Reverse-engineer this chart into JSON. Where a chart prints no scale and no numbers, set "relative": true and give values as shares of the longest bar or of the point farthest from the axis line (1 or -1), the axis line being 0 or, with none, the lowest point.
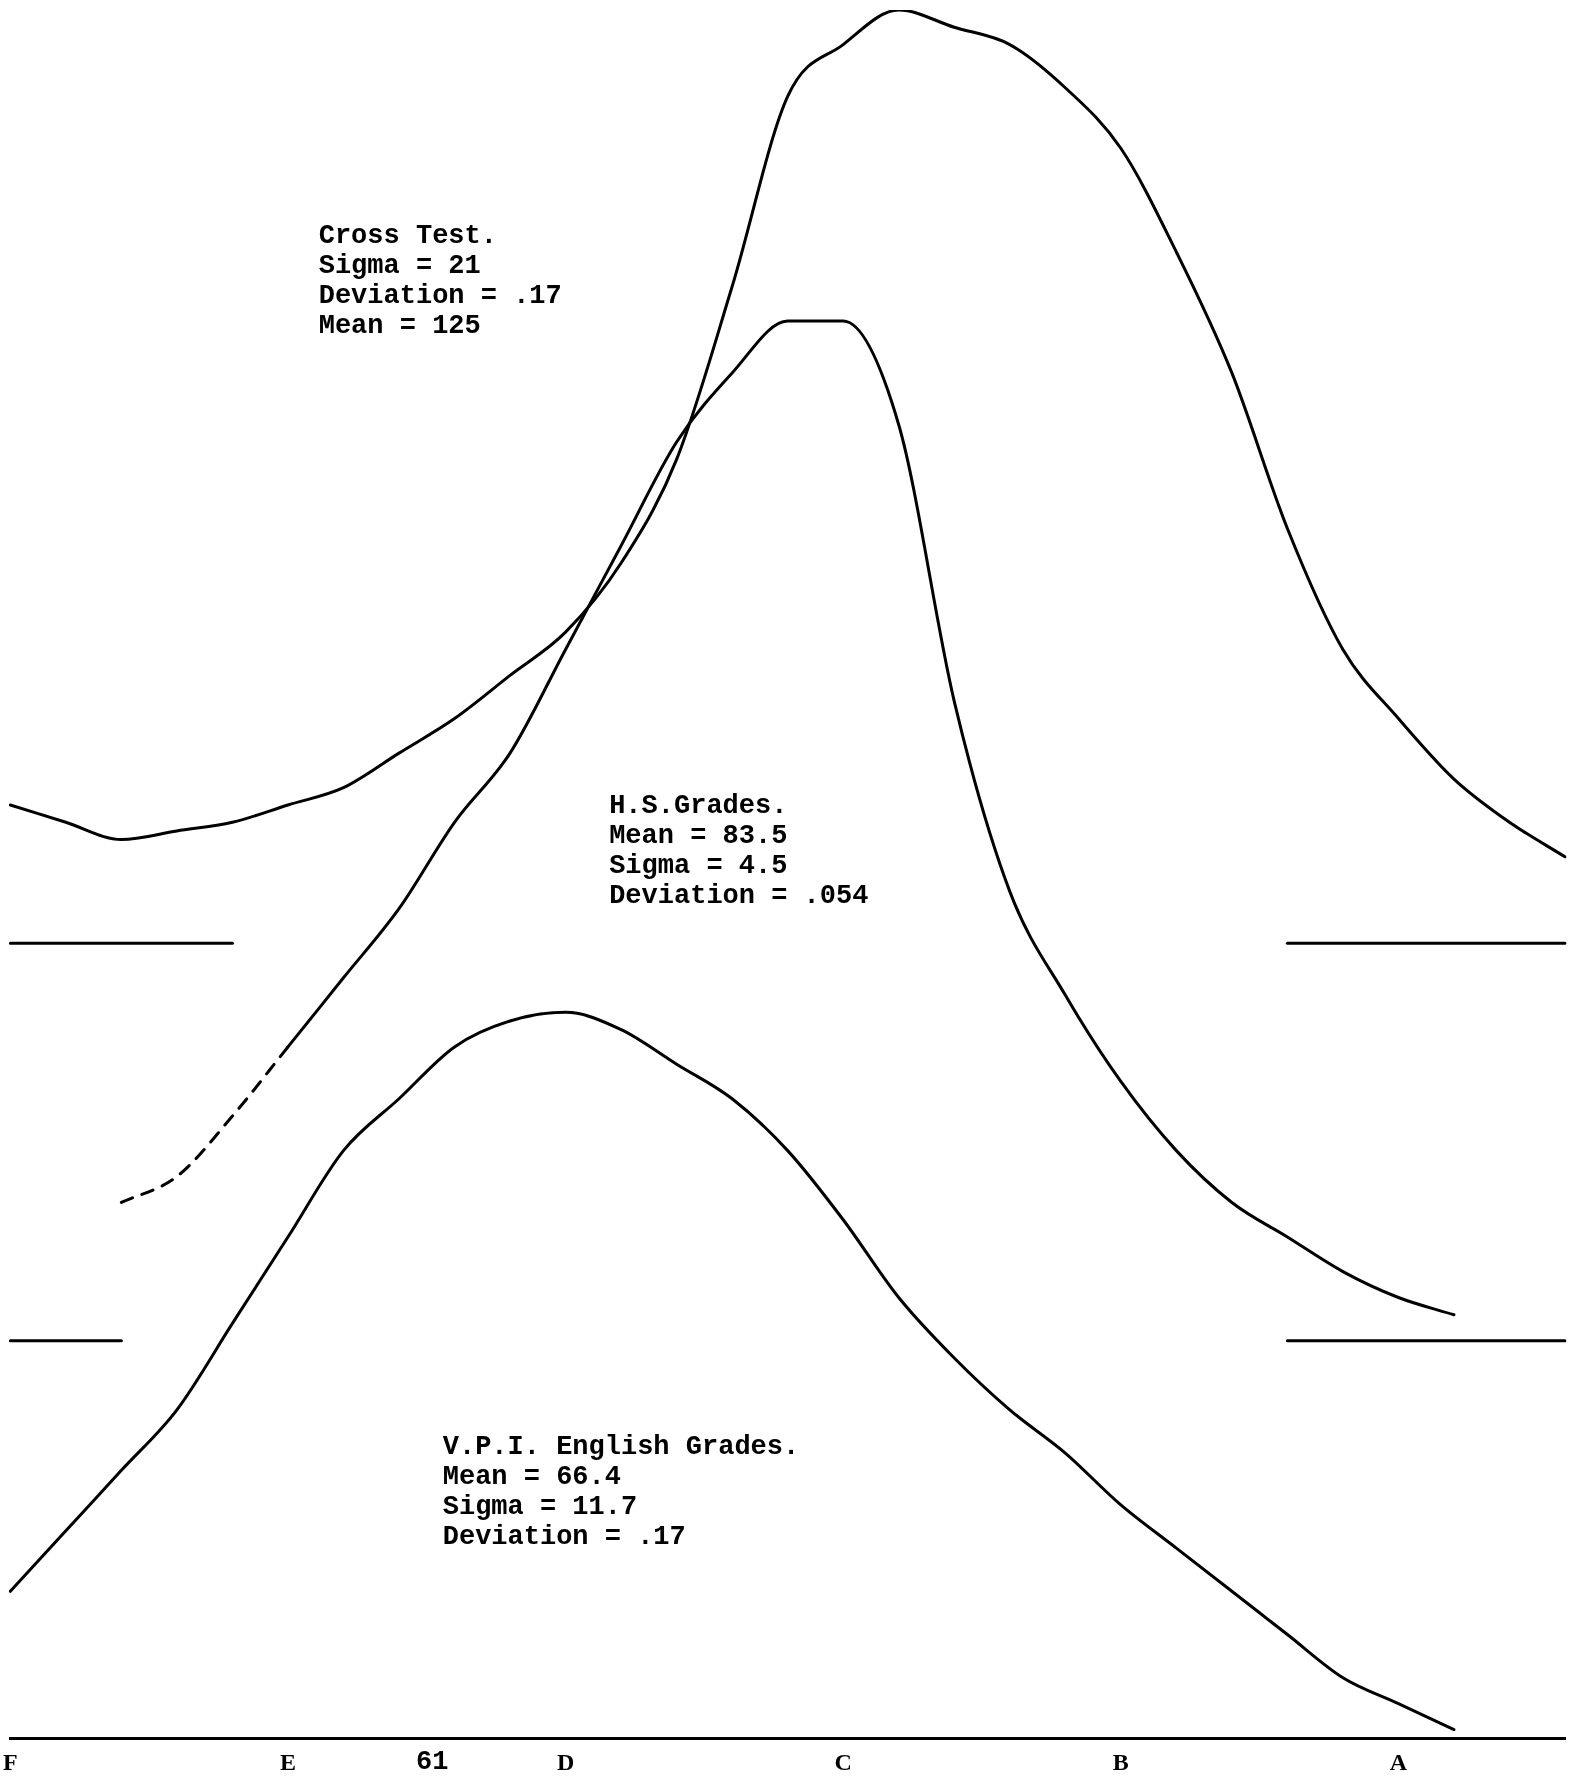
{
  "chart_data": {
    "type": "line",
    "relative": true,
    "grid": false,
    "legend": false,
    "marker": "none",
    "line_style": "solid",
    "categories": [
      "F",
      null,
      null,
      null,
      null,
      "E",
      null,
      null,
      null,
      null,
      "D",
      null,
      null,
      null,
      null,
      "C",
      null,
      null,
      null,
      null,
      "B",
      null,
      null,
      null,
      null,
      "A",
      null,
      null,
      null
    ],
    "annotations": [
      "Cross Test.\nSigma = 21\nDeviation = .17\nMean = 125",
      "H.S.Grades.\nMean = 83.5\nSigma = 4.5\nDeviation = .054",
      "V.P.I. English Grades.\nMean = 66.4\nSigma = 11.7\nDeviation = .17",
      "61"
    ],
    "series": [
      {
        "color": "#000000",
        "values": [
          0.54,
          0.53,
          0.52,
          0.525,
          0.53,
          0.54,
          0.55,
          0.57,
          0.59,
          0.615,
          0.64,
          0.68,
          0.74,
          0.84,
          0.95,
          0.98,
          1.0,
          0.99,
          0.98,
          0.955,
          0.92,
          0.86,
          0.79,
          0.7,
          0.63,
          0.59,
          0.555,
          0.53,
          0.51
        ]
      },
      {
        "color": "#000000",
        "values": [
          null,
          null,
          null,
          null,
          null,
          0.4,
          0.44,
          0.48,
          0.53,
          0.57,
          0.63,
          0.69,
          0.75,
          0.79,
          0.82,
          0.82,
          0.76,
          0.6,
          0.49,
          0.43,
          0.38,
          0.34,
          0.31,
          0.29,
          0.27,
          0.255,
          0.245,
          null,
          null
        ]
      },
      {
        "color": "#000000",
        "line_style": "dashed",
        "values": [
          null,
          null,
          0.31,
          0.325,
          0.36,
          0.4,
          null,
          null,
          null,
          null,
          null,
          null,
          null,
          null,
          null,
          null,
          null,
          null,
          null,
          null,
          null,
          null,
          null,
          null,
          null,
          null,
          null,
          null,
          null
        ]
      },
      {
        "color": "#000000",
        "values": [
          0.085,
          0.12,
          0.155,
          0.19,
          0.24,
          0.29,
          0.34,
          0.37,
          0.4,
          0.415,
          0.42,
          0.41,
          0.39,
          0.37,
          0.34,
          0.3,
          0.255,
          0.22,
          0.19,
          0.165,
          0.135,
          0.11,
          0.085,
          0.06,
          0.035,
          0.02,
          0.005,
          null,
          null
        ]
      },
      {
        "color": "#000000",
        "values": [
          0.46,
          0.46,
          0.46,
          0.46,
          0.46,
          null,
          null,
          null,
          null,
          null,
          null,
          null,
          null,
          null,
          null,
          null,
          null,
          null,
          null,
          null,
          null,
          null,
          null,
          null,
          null,
          null,
          null,
          null,
          null
        ]
      },
      {
        "color": "#000000",
        "values": [
          null,
          null,
          null,
          null,
          null,
          null,
          null,
          null,
          null,
          null,
          null,
          null,
          null,
          null,
          null,
          null,
          null,
          null,
          null,
          null,
          null,
          null,
          null,
          0.46,
          0.46,
          0.46,
          0.46,
          0.46,
          0.46
        ]
      },
      {
        "color": "#000000",
        "values": [
          0.23,
          0.23,
          0.23,
          null,
          null,
          null,
          null,
          null,
          null,
          null,
          null,
          null,
          null,
          null,
          null,
          null,
          null,
          null,
          null,
          null,
          null,
          null,
          null,
          null,
          null,
          null,
          null,
          null,
          null
        ]
      },
      {
        "color": "#000000",
        "values": [
          null,
          null,
          null,
          null,
          null,
          null,
          null,
          null,
          null,
          null,
          null,
          null,
          null,
          null,
          null,
          null,
          null,
          null,
          null,
          null,
          null,
          null,
          null,
          0.23,
          0.23,
          0.23,
          0.23,
          0.23,
          0.23
        ]
      }
    ]
  }
}
